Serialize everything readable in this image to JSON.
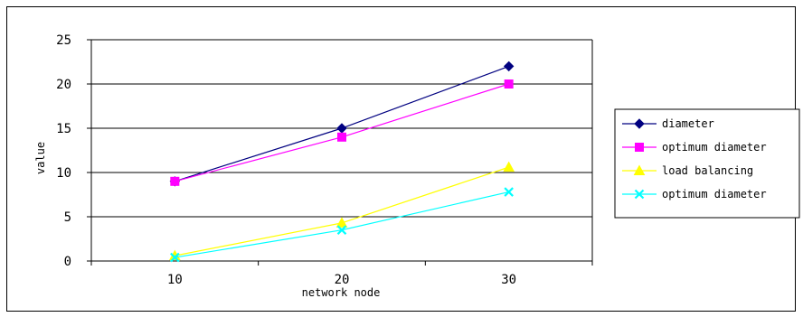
{
  "chart_data": {
    "type": "line",
    "title": "",
    "xlabel": "network node",
    "ylabel": "value",
    "categories": [
      "10",
      "20",
      "30"
    ],
    "ylim": [
      0,
      25
    ],
    "yticks": [
      "0",
      "5",
      "10",
      "15",
      "20",
      "25"
    ],
    "grid": "horizontal",
    "legend_position": "right",
    "series": [
      {
        "name": "diameter",
        "values": [
          9,
          15,
          22
        ],
        "color": "#000080",
        "marker": "diamond"
      },
      {
        "name": "optimum diameter",
        "values": [
          9,
          14,
          20
        ],
        "color": "#ff00ff",
        "marker": "square"
      },
      {
        "name": "load balancing",
        "values": [
          0.6,
          4.3,
          10.6
        ],
        "color": "#ffff00",
        "marker": "triangle"
      },
      {
        "name": "optimum diameter",
        "values": [
          0.4,
          3.5,
          7.8
        ],
        "color": "#00ffff",
        "marker": "x"
      }
    ]
  }
}
